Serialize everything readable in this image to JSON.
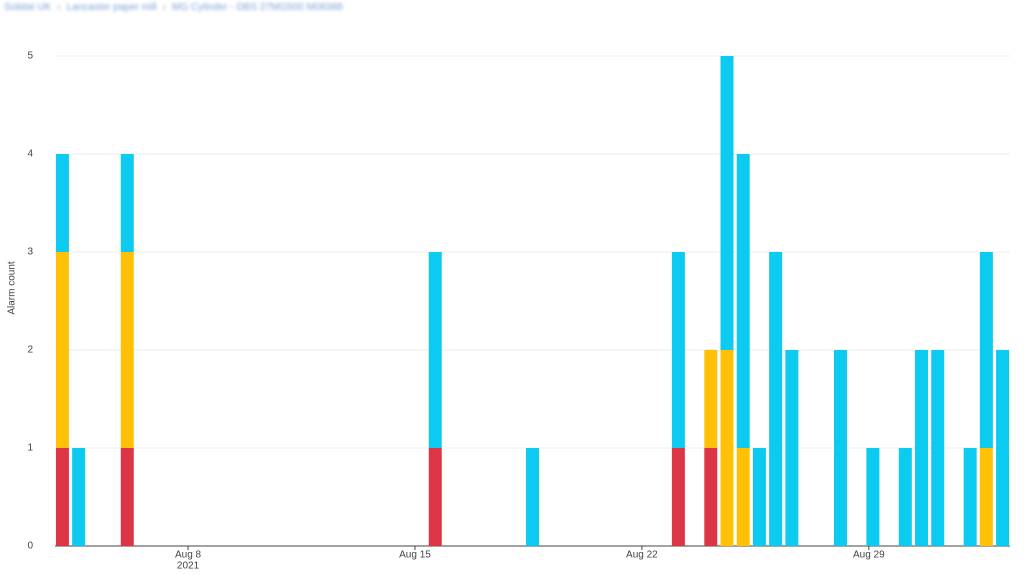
{
  "breadcrumb": [
    "Solidat UK",
    "Lancaster paper mill",
    "MG Cylinder - DBS 27MG500 M08388"
  ],
  "chart_data": {
    "type": "bar",
    "stacked": true,
    "y_label": "Alarm count",
    "x": [
      "2021-08-04T03:00",
      "2021-08-04T15:00",
      "2021-08-06T03:00",
      "2021-08-15T15:00",
      "2021-08-18T15:00",
      "2021-08-23T03:00",
      "2021-08-24T03:00",
      "2021-08-24T15:00",
      "2021-08-25T03:00",
      "2021-08-25T15:00",
      "2021-08-26T03:00",
      "2021-08-26T15:00",
      "2021-08-28T03:00",
      "2021-08-29T03:00",
      "2021-08-30T03:00",
      "2021-08-30T15:00",
      "2021-08-31T03:00",
      "2021-09-01T03:00",
      "2021-09-01T15:00",
      "2021-09-02T03:00"
    ],
    "series": [
      {
        "color": "#dc3545",
        "values": [
          1,
          0,
          1,
          1,
          0,
          1,
          1,
          0,
          0,
          0,
          0,
          0,
          0,
          0,
          0,
          0,
          0,
          0,
          0,
          0
        ]
      },
      {
        "color": "#ffc107",
        "values": [
          2,
          0,
          2,
          0,
          0,
          0,
          1,
          2,
          1,
          0,
          0,
          0,
          0,
          0,
          0,
          0,
          0,
          0,
          1,
          0
        ]
      },
      {
        "color": "#0dcaf0",
        "values": [
          1,
          1,
          1,
          2,
          1,
          2,
          0,
          3,
          3,
          1,
          3,
          2,
          2,
          1,
          1,
          2,
          2,
          1,
          2,
          2
        ]
      }
    ],
    "xlim": [
      "2021-08-03T21:30",
      "2021-09-02T08:30"
    ],
    "xticks": [
      {
        "value": "2021-08-08T00:00",
        "label": [
          "Aug 8",
          "2021"
        ]
      },
      {
        "value": "2021-08-15T00:00",
        "label": [
          "Aug 15"
        ]
      },
      {
        "value": "2021-08-22T00:00",
        "label": [
          "Aug 22"
        ]
      },
      {
        "value": "2021-08-29T00:00",
        "label": [
          "Aug 29"
        ]
      }
    ],
    "ylim": [
      0,
      5
    ],
    "yticks": [
      0,
      1,
      2,
      3,
      4,
      5
    ],
    "grid": true
  }
}
